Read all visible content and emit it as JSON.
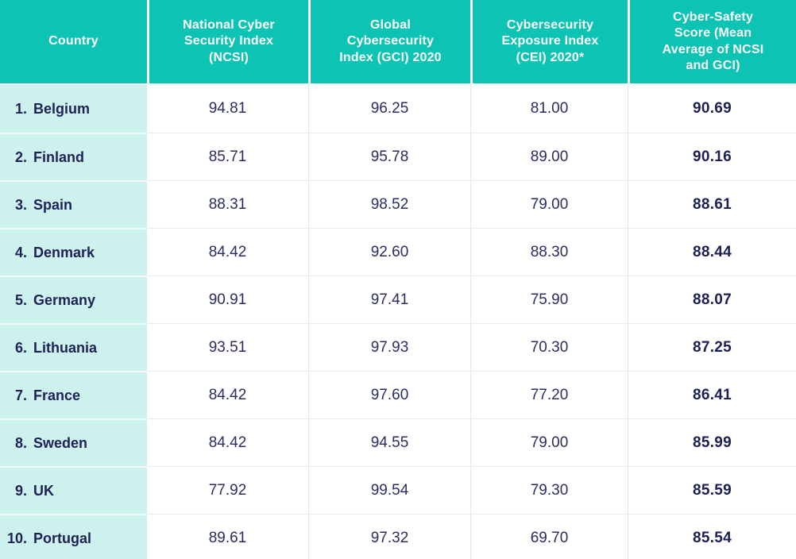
{
  "colors": {
    "header_teal": "#0dc4b4",
    "country_column_mint": "#cdf2ee",
    "text_navy": "#1e2158",
    "grid_line": "#e7ecec"
  },
  "chart_data": {
    "type": "table",
    "title": "",
    "columns": [
      "Country",
      "National Cyber Security Index (NCSI)",
      "Global Cybersecurity Index (GCI) 2020",
      "Cybersecurity Exposure Index (CEI) 2020*",
      "Cyber-Safety Score (Mean Average of NCSI and GCI)"
    ],
    "rows": [
      {
        "rank": "1.",
        "country": "Belgium",
        "ncsi": "94.81",
        "gci": "96.25",
        "cei": "81.00",
        "score": "90.69"
      },
      {
        "rank": "2.",
        "country": "Finland",
        "ncsi": "85.71",
        "gci": "95.78",
        "cei": "89.00",
        "score": "90.16"
      },
      {
        "rank": "3.",
        "country": "Spain",
        "ncsi": "88.31",
        "gci": "98.52",
        "cei": "79.00",
        "score": "88.61"
      },
      {
        "rank": "4.",
        "country": "Denmark",
        "ncsi": "84.42",
        "gci": "92.60",
        "cei": "88.30",
        "score": "88.44"
      },
      {
        "rank": "5.",
        "country": "Germany",
        "ncsi": "90.91",
        "gci": "97.41",
        "cei": "75.90",
        "score": "88.07"
      },
      {
        "rank": "6.",
        "country": "Lithuania",
        "ncsi": "93.51",
        "gci": "97.93",
        "cei": "70.30",
        "score": "87.25"
      },
      {
        "rank": "7.",
        "country": "France",
        "ncsi": "84.42",
        "gci": "97.60",
        "cei": "77.20",
        "score": "86.41"
      },
      {
        "rank": "8.",
        "country": "Sweden",
        "ncsi": "84.42",
        "gci": "94.55",
        "cei": "79.00",
        "score": "85.99"
      },
      {
        "rank": "9.",
        "country": "UK",
        "ncsi": "77.92",
        "gci": "99.54",
        "cei": "79.30",
        "score": "85.59"
      },
      {
        "rank": "10.",
        "country": "Portugal",
        "ncsi": "89.61",
        "gci": "97.32",
        "cei": "69.70",
        "score": "85.54"
      }
    ]
  }
}
